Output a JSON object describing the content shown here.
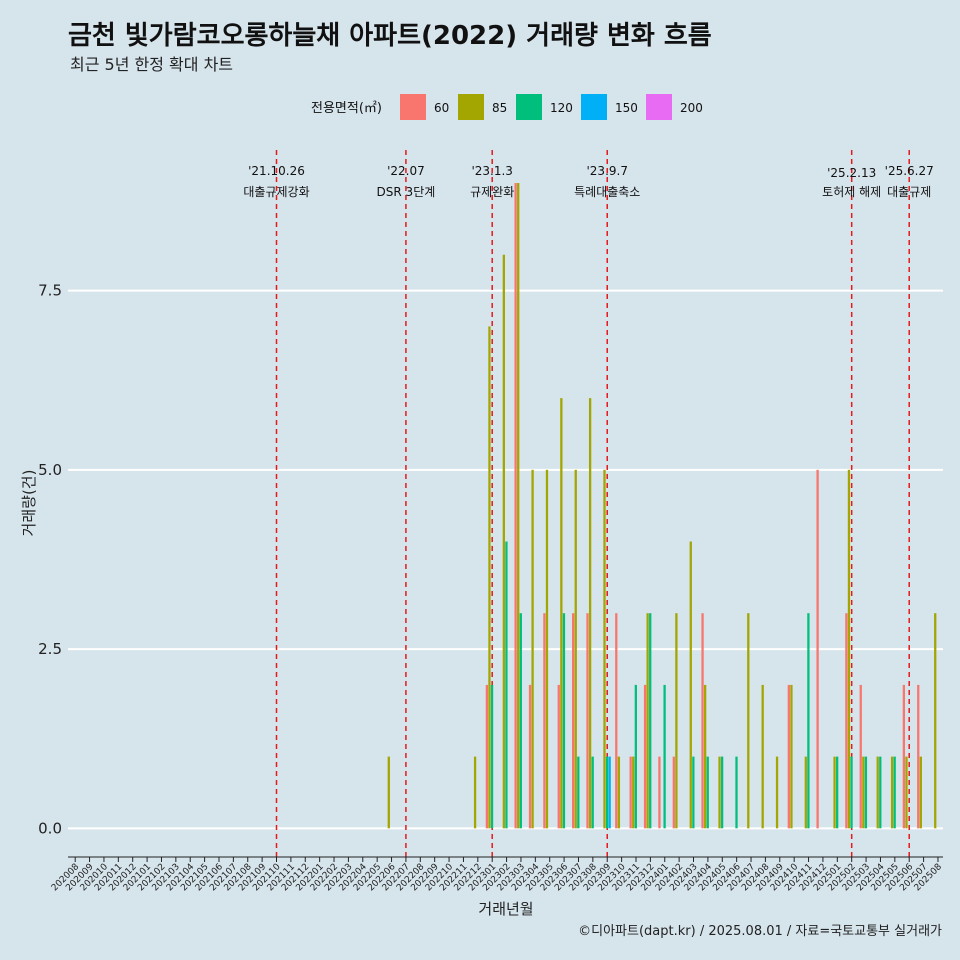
{
  "chart_data": {
    "type": "bar",
    "title": "금천 빛가람코오롱하늘채 아파트(2022) 거래량 변화 흐름",
    "subtitle": "최근 5년 한정 확대 차트",
    "xlabel": "거래년월",
    "ylabel": "거래량(건)",
    "ylim": [
      -0.4,
      9.6
    ],
    "yticks": [
      0.0,
      2.5,
      5.0,
      7.5
    ],
    "ytick_labels": [
      "0.0",
      "2.5",
      "5.0",
      "7.5"
    ],
    "legend_title": "전용면적(㎡)",
    "legend_position": "top",
    "grid": "horizontal",
    "caption": "©디아파트(dapt.kr) / 2025.08.01 / 자료=국토교통부 실거래가",
    "colors": {
      "60": "#f8766d",
      "85": "#a3a500",
      "120": "#00bf7d",
      "150": "#00b0f6",
      "200": "#e76bf3"
    },
    "categories": [
      "202008",
      "202009",
      "202010",
      "202011",
      "202012",
      "202101",
      "202102",
      "202103",
      "202104",
      "202105",
      "202106",
      "202107",
      "202108",
      "202109",
      "202110",
      "202111",
      "202112",
      "202201",
      "202202",
      "202203",
      "202204",
      "202205",
      "202206",
      "202207",
      "202208",
      "202209",
      "202210",
      "202211",
      "202212",
      "202301",
      "202302",
      "202303",
      "202304",
      "202305",
      "202306",
      "202307",
      "202308",
      "202309",
      "202310",
      "202311",
      "202312",
      "202401",
      "202402",
      "202403",
      "202404",
      "202405",
      "202406",
      "202407",
      "202408",
      "202409",
      "202410",
      "202411",
      "202412",
      "202501",
      "202502",
      "202503",
      "202504",
      "202505",
      "202506",
      "202507",
      "202508"
    ],
    "series": [
      {
        "name": "60",
        "values": [
          0,
          0,
          0,
          0,
          0,
          0,
          0,
          0,
          0,
          0,
          0,
          0,
          0,
          0,
          0,
          0,
          0,
          0,
          0,
          0,
          0,
          0,
          0,
          0,
          0,
          0,
          0,
          0,
          0,
          2,
          0,
          9,
          2,
          3,
          2,
          3,
          3,
          0,
          3,
          1,
          2,
          1,
          1,
          0,
          3,
          0,
          0,
          0,
          0,
          0,
          2,
          0,
          5,
          0,
          3,
          2,
          0,
          0,
          2,
          2,
          0
        ]
      },
      {
        "name": "85",
        "values": [
          0,
          0,
          0,
          0,
          0,
          0,
          0,
          0,
          0,
          0,
          0,
          0,
          0,
          0,
          0,
          0,
          0,
          0,
          0,
          0,
          0,
          0,
          1,
          0,
          0,
          0,
          0,
          0,
          1,
          7,
          8,
          9,
          5,
          5,
          6,
          5,
          6,
          5,
          1,
          1,
          3,
          0,
          3,
          4,
          2,
          1,
          0,
          3,
          2,
          1,
          2,
          1,
          0,
          1,
          5,
          1,
          1,
          1,
          1,
          1,
          3
        ]
      },
      {
        "name": "120",
        "values": [
          0,
          0,
          0,
          0,
          0,
          0,
          0,
          0,
          0,
          0,
          0,
          0,
          0,
          0,
          0,
          0,
          0,
          0,
          0,
          0,
          0,
          0,
          0,
          0,
          0,
          0,
          0,
          0,
          0,
          2,
          4,
          3,
          0,
          0,
          3,
          1,
          1,
          1,
          0,
          2,
          3,
          2,
          0,
          1,
          1,
          1,
          1,
          0,
          0,
          0,
          0,
          3,
          0,
          1,
          1,
          1,
          1,
          1,
          0,
          0,
          0
        ]
      },
      {
        "name": "150",
        "values": [
          0,
          0,
          0,
          0,
          0,
          0,
          0,
          0,
          0,
          0,
          0,
          0,
          0,
          0,
          0,
          0,
          0,
          0,
          0,
          0,
          0,
          0,
          0,
          0,
          0,
          0,
          0,
          0,
          0,
          0,
          0,
          0,
          0,
          0,
          0,
          0,
          0,
          1,
          0,
          0,
          0,
          0,
          0,
          0,
          0,
          0,
          0,
          0,
          0,
          0,
          0,
          0,
          0,
          0,
          0,
          0,
          0,
          0,
          0,
          0,
          0
        ]
      },
      {
        "name": "200",
        "values": [
          0,
          0,
          0,
          0,
          0,
          0,
          0,
          0,
          0,
          0,
          0,
          0,
          0,
          0,
          0,
          0,
          0,
          0,
          0,
          0,
          0,
          0,
          0,
          0,
          0,
          0,
          0,
          0,
          0,
          0,
          0,
          0,
          0,
          0,
          0,
          0,
          0,
          0,
          0,
          0,
          0,
          0,
          0,
          0,
          0,
          0,
          0,
          0,
          0,
          0,
          0,
          0,
          0,
          0,
          0,
          0,
          0,
          0,
          0,
          0,
          0
        ]
      }
    ],
    "events": [
      {
        "x_month": "202110",
        "date": "'21.10.26",
        "label": "대출규제강화"
      },
      {
        "x_month": "202207",
        "date": "'22.07",
        "label": "DSR 3단계"
      },
      {
        "x_month": "202301",
        "date": "'23.1.3",
        "label": "규제완화"
      },
      {
        "x_month": "202309",
        "date": "'23.9.7",
        "label": "특례대출축소"
      },
      {
        "x_month": "202502",
        "date": "'25.2.13",
        "label": "토허제 해제"
      },
      {
        "x_month": "202506",
        "date": "'25.6.27",
        "label": "대출규제"
      }
    ]
  }
}
